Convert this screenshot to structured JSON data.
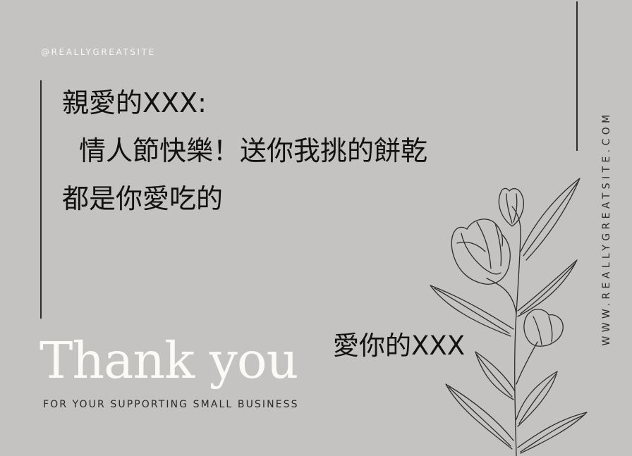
{
  "card": {
    "handle": "@REALLYGREATSITE",
    "message_lines": [
      "親愛的XXX:",
      "情人節快樂！送你我挑的餅乾",
      "都是你愛吃的"
    ],
    "signature": "愛你的XXX",
    "thanks_title": "Thank you",
    "tagline": "FOR YOUR SUPPORTING SMALL BUSINESS",
    "website": "WWW.REALLYGREATSITE.COM"
  },
  "icons": {
    "flower": "tulip-line-art-icon"
  },
  "colors": {
    "background": "#c4c3c1",
    "title": "#fbfaf7",
    "ink": "#111111"
  }
}
